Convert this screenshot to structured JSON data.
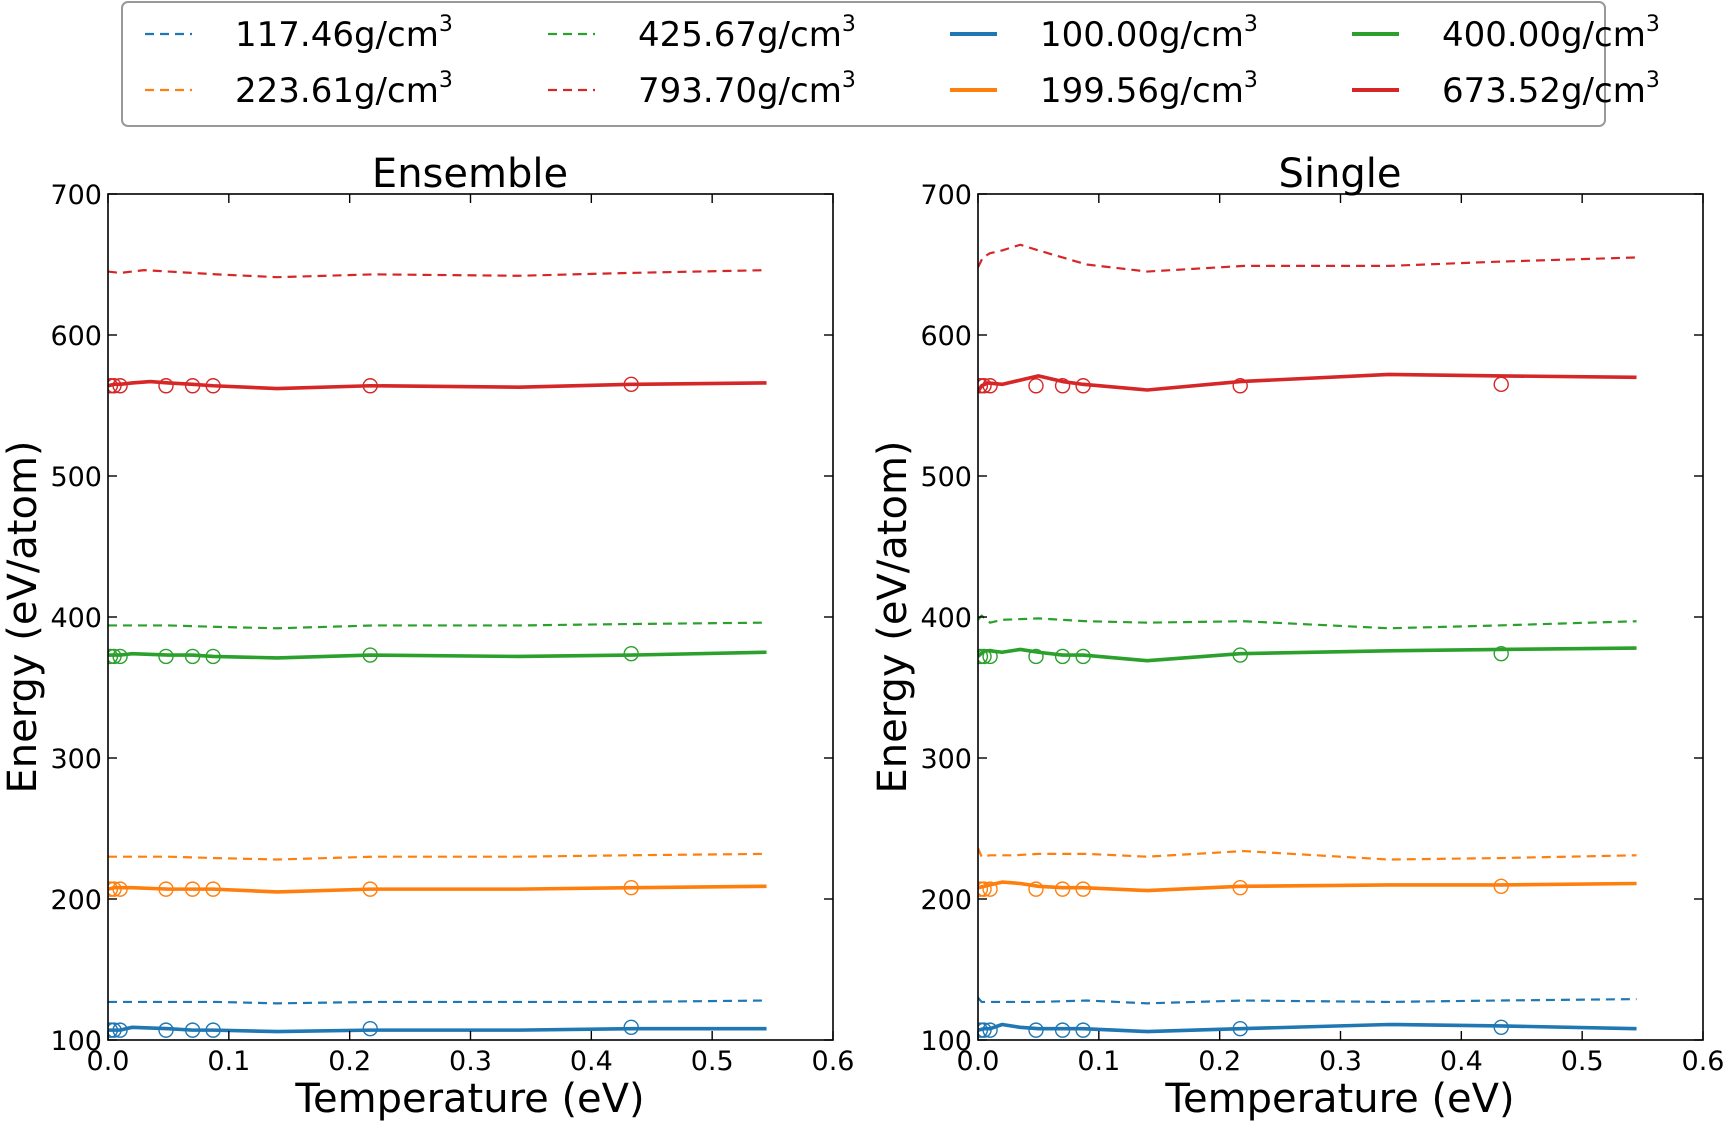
{
  "legend": {
    "entries": [
      {
        "label": "117.46g/cm",
        "sup": "3",
        "color": "#1f77b4",
        "dashed": true
      },
      {
        "label": "425.67g/cm",
        "sup": "3",
        "color": "#2ca02c",
        "dashed": true
      },
      {
        "label": "100.00g/cm",
        "sup": "3",
        "color": "#1f77b4",
        "dashed": false
      },
      {
        "label": "400.00g/cm",
        "sup": "3",
        "color": "#2ca02c",
        "dashed": false
      },
      {
        "label": "223.61g/cm",
        "sup": "3",
        "color": "#ff7f0e",
        "dashed": true
      },
      {
        "label": "793.70g/cm",
        "sup": "3",
        "color": "#d62728",
        "dashed": true
      },
      {
        "label": "199.56g/cm",
        "sup": "3",
        "color": "#ff7f0e",
        "dashed": false
      },
      {
        "label": "673.52g/cm",
        "sup": "3",
        "color": "#d62728",
        "dashed": false
      }
    ]
  },
  "chart_data": [
    {
      "type": "line",
      "title": "Ensemble",
      "xlabel": "Temperature (eV)",
      "ylabel": "Energy (eV/atom)",
      "xlim": [
        0.0,
        0.6
      ],
      "ylim": [
        100,
        700
      ],
      "xticks": [
        "0.0",
        "0.1",
        "0.2",
        "0.3",
        "0.4",
        "0.5",
        "0.6"
      ],
      "yticks": [
        "100",
        "200",
        "300",
        "400",
        "500",
        "600",
        "700"
      ],
      "grid": false,
      "series": [
        {
          "density": "117.46g/cm3",
          "style": "dashed",
          "color": "#1f77b4",
          "x": [
            0.0,
            0.02,
            0.05,
            0.09,
            0.14,
            0.22,
            0.34,
            0.43,
            0.545
          ],
          "y": [
            127,
            127,
            127,
            127,
            126,
            127,
            127,
            127,
            128
          ]
        },
        {
          "density": "223.61g/cm3",
          "style": "dashed",
          "color": "#ff7f0e",
          "x": [
            0.0,
            0.02,
            0.05,
            0.09,
            0.14,
            0.22,
            0.34,
            0.43,
            0.545
          ],
          "y": [
            230,
            230,
            230,
            229,
            228,
            230,
            230,
            231,
            232
          ]
        },
        {
          "density": "425.67g/cm3",
          "style": "dashed",
          "color": "#2ca02c",
          "x": [
            0.0,
            0.02,
            0.05,
            0.09,
            0.14,
            0.22,
            0.34,
            0.43,
            0.545
          ],
          "y": [
            394,
            394,
            394,
            393,
            392,
            394,
            394,
            395,
            396
          ]
        },
        {
          "density": "793.70g/cm3",
          "style": "dashed",
          "color": "#d62728",
          "x": [
            0.0,
            0.01,
            0.02,
            0.03,
            0.05,
            0.09,
            0.14,
            0.22,
            0.34,
            0.43,
            0.545
          ],
          "y": [
            645,
            644,
            645,
            646,
            645,
            643,
            641,
            643,
            642,
            644,
            646
          ]
        },
        {
          "density": "100.00g/cm3",
          "style": "solid",
          "color": "#1f77b4",
          "x": [
            0.0,
            0.005,
            0.01,
            0.02,
            0.05,
            0.07,
            0.087,
            0.14,
            0.217,
            0.34,
            0.433,
            0.545
          ],
          "y": [
            107,
            107,
            107,
            109,
            108,
            107,
            107,
            106,
            107,
            107,
            108,
            108
          ]
        },
        {
          "density": "199.56g/cm3",
          "style": "solid",
          "color": "#ff7f0e",
          "x": [
            0.0,
            0.005,
            0.01,
            0.02,
            0.05,
            0.07,
            0.087,
            0.14,
            0.217,
            0.34,
            0.433,
            0.545
          ],
          "y": [
            207,
            208,
            208,
            208,
            207,
            207,
            207,
            205,
            207,
            207,
            208,
            209
          ]
        },
        {
          "density": "400.00g/cm3",
          "style": "solid",
          "color": "#2ca02c",
          "x": [
            0.0,
            0.005,
            0.01,
            0.02,
            0.05,
            0.07,
            0.087,
            0.14,
            0.217,
            0.34,
            0.433,
            0.545
          ],
          "y": [
            373,
            373,
            373,
            374,
            373,
            373,
            372,
            371,
            373,
            372,
            373,
            375
          ]
        },
        {
          "density": "673.52g/cm3",
          "style": "solid",
          "color": "#d62728",
          "x": [
            0.0,
            0.005,
            0.01,
            0.02,
            0.035,
            0.05,
            0.07,
            0.087,
            0.14,
            0.217,
            0.34,
            0.433,
            0.545
          ],
          "y": [
            564,
            565,
            565,
            566,
            567,
            566,
            565,
            564,
            562,
            564,
            563,
            565,
            566
          ]
        }
      ],
      "markers": [
        {
          "color": "#1f77b4",
          "x": [
            0.002,
            0.005,
            0.01,
            0.048,
            0.07,
            0.087,
            0.217,
            0.433
          ],
          "y": [
            107,
            107,
            107,
            107,
            107,
            107,
            108,
            109
          ]
        },
        {
          "color": "#ff7f0e",
          "x": [
            0.002,
            0.005,
            0.01,
            0.048,
            0.07,
            0.087,
            0.217,
            0.433
          ],
          "y": [
            207,
            207,
            207,
            207,
            207,
            207,
            207,
            208
          ]
        },
        {
          "color": "#2ca02c",
          "x": [
            0.002,
            0.005,
            0.01,
            0.048,
            0.07,
            0.087,
            0.217,
            0.433
          ],
          "y": [
            372,
            372,
            372,
            372,
            372,
            372,
            373,
            374
          ]
        },
        {
          "color": "#d62728",
          "x": [
            0.002,
            0.005,
            0.01,
            0.048,
            0.07,
            0.087,
            0.217,
            0.433
          ],
          "y": [
            564,
            564,
            564,
            564,
            564,
            564,
            564,
            565
          ]
        }
      ]
    },
    {
      "type": "line",
      "title": "Single",
      "xlabel": "Temperature (eV)",
      "ylabel": "Energy (eV/atom)",
      "xlim": [
        0.0,
        0.6
      ],
      "ylim": [
        100,
        700
      ],
      "xticks": [
        "0.0",
        "0.1",
        "0.2",
        "0.3",
        "0.4",
        "0.5",
        "0.6"
      ],
      "yticks": [
        "100",
        "200",
        "300",
        "400",
        "500",
        "600",
        "700"
      ],
      "grid": false,
      "series": [
        {
          "density": "117.46g/cm3",
          "style": "dashed",
          "color": "#1f77b4",
          "x": [
            0.0,
            0.003,
            0.01,
            0.05,
            0.09,
            0.14,
            0.22,
            0.34,
            0.43,
            0.545
          ],
          "y": [
            130,
            127,
            127,
            127,
            128,
            126,
            128,
            127,
            128,
            129
          ]
        },
        {
          "density": "223.61g/cm3",
          "style": "dashed",
          "color": "#ff7f0e",
          "x": [
            0.0,
            0.003,
            0.01,
            0.03,
            0.05,
            0.09,
            0.14,
            0.22,
            0.34,
            0.43,
            0.545
          ],
          "y": [
            236,
            230,
            231,
            231,
            232,
            232,
            230,
            234,
            228,
            229,
            231
          ]
        },
        {
          "density": "425.67g/cm3",
          "style": "dashed",
          "color": "#2ca02c",
          "x": [
            0.0,
            0.003,
            0.01,
            0.02,
            0.05,
            0.09,
            0.14,
            0.22,
            0.34,
            0.43,
            0.545
          ],
          "y": [
            398,
            401,
            396,
            398,
            399,
            397,
            396,
            397,
            392,
            394,
            397
          ]
        },
        {
          "density": "793.70g/cm3",
          "style": "dashed",
          "color": "#d62728",
          "x": [
            0.0,
            0.004,
            0.01,
            0.02,
            0.035,
            0.05,
            0.09,
            0.14,
            0.22,
            0.34,
            0.43,
            0.545
          ],
          "y": [
            648,
            655,
            658,
            660,
            664,
            660,
            650,
            645,
            649,
            649,
            652,
            655
          ]
        },
        {
          "density": "100.00g/cm3",
          "style": "solid",
          "color": "#1f77b4",
          "x": [
            0.0,
            0.005,
            0.01,
            0.02,
            0.035,
            0.05,
            0.07,
            0.087,
            0.14,
            0.217,
            0.34,
            0.433,
            0.545
          ],
          "y": [
            107,
            108,
            108,
            111,
            109,
            108,
            108,
            108,
            106,
            108,
            111,
            110,
            108
          ]
        },
        {
          "density": "199.56g/cm3",
          "style": "solid",
          "color": "#ff7f0e",
          "x": [
            0.0,
            0.005,
            0.01,
            0.02,
            0.035,
            0.05,
            0.07,
            0.087,
            0.14,
            0.217,
            0.34,
            0.433,
            0.545
          ],
          "y": [
            208,
            209,
            210,
            212,
            211,
            209,
            208,
            208,
            206,
            209,
            210,
            210,
            211
          ]
        },
        {
          "density": "400.00g/cm3",
          "style": "solid",
          "color": "#2ca02c",
          "x": [
            0.0,
            0.005,
            0.01,
            0.02,
            0.035,
            0.05,
            0.07,
            0.087,
            0.14,
            0.217,
            0.34,
            0.433,
            0.545
          ],
          "y": [
            372,
            376,
            376,
            375,
            377,
            375,
            373,
            373,
            369,
            374,
            376,
            377,
            378
          ]
        },
        {
          "density": "673.52g/cm3",
          "style": "solid",
          "color": "#d62728",
          "x": [
            0.0,
            0.003,
            0.008,
            0.02,
            0.035,
            0.05,
            0.07,
            0.087,
            0.14,
            0.217,
            0.34,
            0.433,
            0.545
          ],
          "y": [
            560,
            564,
            566,
            565,
            568,
            571,
            567,
            565,
            561,
            567,
            572,
            571,
            570
          ]
        }
      ],
      "markers": [
        {
          "color": "#1f77b4",
          "x": [
            0.002,
            0.005,
            0.01,
            0.048,
            0.07,
            0.087,
            0.217,
            0.433
          ],
          "y": [
            107,
            107,
            107,
            107,
            107,
            107,
            108,
            109
          ]
        },
        {
          "color": "#ff7f0e",
          "x": [
            0.002,
            0.005,
            0.01,
            0.048,
            0.07,
            0.087,
            0.217,
            0.433
          ],
          "y": [
            207,
            207,
            207,
            207,
            207,
            207,
            208,
            209
          ]
        },
        {
          "color": "#2ca02c",
          "x": [
            0.002,
            0.005,
            0.01,
            0.048,
            0.07,
            0.087,
            0.217,
            0.433
          ],
          "y": [
            372,
            372,
            372,
            372,
            372,
            372,
            373,
            374
          ]
        },
        {
          "color": "#d62728",
          "x": [
            0.002,
            0.005,
            0.01,
            0.048,
            0.07,
            0.087,
            0.217,
            0.433
          ],
          "y": [
            564,
            564,
            564,
            564,
            564,
            564,
            564,
            565
          ]
        }
      ]
    }
  ]
}
